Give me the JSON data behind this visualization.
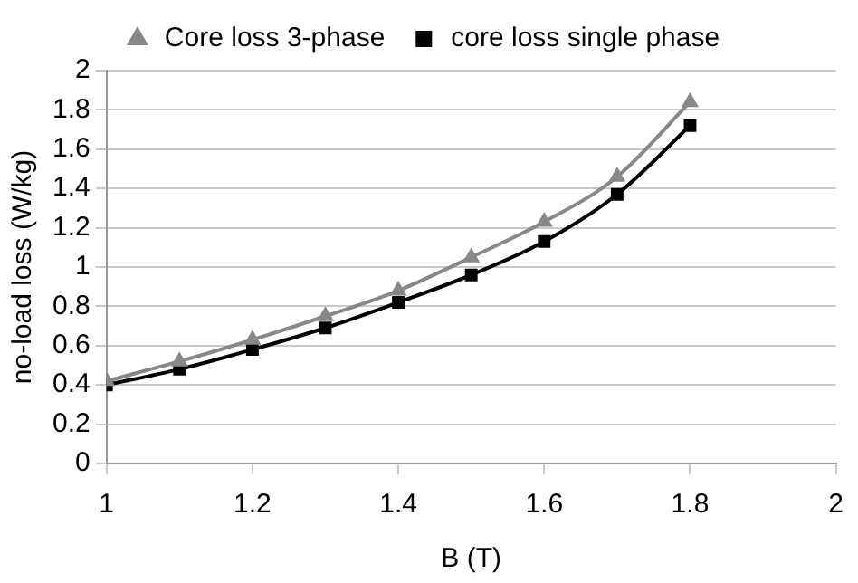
{
  "chart_data": {
    "type": "line",
    "xlabel": "B (T)",
    "ylabel": "no-load loss (W/kg)",
    "x": [
      1,
      1.1,
      1.2,
      1.3,
      1.4,
      1.5,
      1.6,
      1.7,
      1.8
    ],
    "series": [
      {
        "name": "Core loss 3-phase",
        "color": "#888888",
        "marker": "triangle",
        "values": [
          0.42,
          0.52,
          0.63,
          0.75,
          0.88,
          1.05,
          1.23,
          1.46,
          1.84
        ]
      },
      {
        "name": "core loss single phase",
        "color": "#000000",
        "marker": "square",
        "values": [
          0.4,
          0.48,
          0.58,
          0.69,
          0.82,
          0.96,
          1.13,
          1.37,
          1.72
        ]
      }
    ],
    "xlim": [
      1,
      2
    ],
    "xticks": [
      1,
      1.2,
      1.4,
      1.6,
      1.8,
      2
    ],
    "ylim": [
      0,
      2
    ],
    "yticks": [
      0,
      0.2,
      0.4,
      0.6,
      0.8,
      1,
      1.2,
      1.4,
      1.6,
      1.8,
      2
    ],
    "grid": "y",
    "legend": "top",
    "line_style": "solid"
  }
}
